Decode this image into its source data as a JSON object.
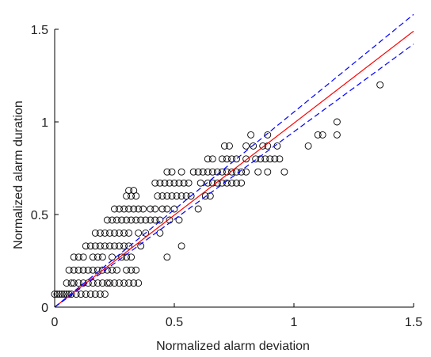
{
  "chart_data": {
    "type": "scatter",
    "title": "",
    "xlabel": "Normalized alarm deviation",
    "ylabel": "Normalized alarm duration",
    "xlim": [
      0,
      1.5
    ],
    "ylim": [
      0,
      1.5
    ],
    "x_ticks": [
      0,
      0.5,
      1,
      1.5
    ],
    "y_ticks": [
      0,
      0.5,
      1,
      1.5
    ],
    "x_tick_labels": [
      "0",
      "0.5",
      "1",
      "1.5"
    ],
    "y_tick_labels": [
      "0",
      "0.5",
      "1",
      "1.5"
    ],
    "grid": false,
    "marker": "open-circle",
    "colors": {
      "points": "#000000",
      "fit": "#ff0000",
      "bounds": "#0000ff",
      "axes": "#000000"
    },
    "lines": [
      {
        "style": "solid",
        "color": "#ff0000",
        "x": [
          0,
          1.5
        ],
        "y": [
          0,
          1.49
        ]
      },
      {
        "style": "dashed",
        "color": "#0000ff",
        "x": [
          0,
          1.5
        ],
        "y": [
          0,
          1.58
        ]
      },
      {
        "style": "dashed",
        "color": "#0000ff",
        "x": [
          0,
          1.5
        ],
        "y": [
          0,
          1.42
        ]
      }
    ],
    "points": [
      [
        0.0,
        0.07
      ],
      [
        0.01,
        0.07
      ],
      [
        0.02,
        0.07
      ],
      [
        0.03,
        0.07
      ],
      [
        0.04,
        0.07
      ],
      [
        0.05,
        0.07
      ],
      [
        0.06,
        0.07
      ],
      [
        0.07,
        0.07
      ],
      [
        0.09,
        0.07
      ],
      [
        0.11,
        0.07
      ],
      [
        0.13,
        0.07
      ],
      [
        0.15,
        0.07
      ],
      [
        0.17,
        0.07
      ],
      [
        0.19,
        0.07
      ],
      [
        0.21,
        0.07
      ],
      [
        0.05,
        0.13
      ],
      [
        0.07,
        0.13
      ],
      [
        0.08,
        0.13
      ],
      [
        0.1,
        0.13
      ],
      [
        0.12,
        0.13
      ],
      [
        0.14,
        0.13
      ],
      [
        0.16,
        0.13
      ],
      [
        0.18,
        0.13
      ],
      [
        0.2,
        0.13
      ],
      [
        0.22,
        0.13
      ],
      [
        0.23,
        0.13
      ],
      [
        0.25,
        0.13
      ],
      [
        0.27,
        0.13
      ],
      [
        0.29,
        0.13
      ],
      [
        0.31,
        0.13
      ],
      [
        0.33,
        0.13
      ],
      [
        0.35,
        0.13
      ],
      [
        0.06,
        0.2
      ],
      [
        0.08,
        0.2
      ],
      [
        0.1,
        0.2
      ],
      [
        0.12,
        0.2
      ],
      [
        0.14,
        0.2
      ],
      [
        0.16,
        0.2
      ],
      [
        0.18,
        0.2
      ],
      [
        0.2,
        0.2
      ],
      [
        0.22,
        0.2
      ],
      [
        0.24,
        0.2
      ],
      [
        0.26,
        0.2
      ],
      [
        0.3,
        0.2
      ],
      [
        0.32,
        0.2
      ],
      [
        0.34,
        0.2
      ],
      [
        0.08,
        0.27
      ],
      [
        0.1,
        0.27
      ],
      [
        0.12,
        0.27
      ],
      [
        0.16,
        0.27
      ],
      [
        0.18,
        0.27
      ],
      [
        0.2,
        0.27
      ],
      [
        0.24,
        0.27
      ],
      [
        0.28,
        0.27
      ],
      [
        0.3,
        0.27
      ],
      [
        0.32,
        0.27
      ],
      [
        0.47,
        0.27
      ],
      [
        0.13,
        0.33
      ],
      [
        0.15,
        0.33
      ],
      [
        0.17,
        0.33
      ],
      [
        0.19,
        0.33
      ],
      [
        0.21,
        0.33
      ],
      [
        0.23,
        0.33
      ],
      [
        0.25,
        0.33
      ],
      [
        0.27,
        0.33
      ],
      [
        0.29,
        0.33
      ],
      [
        0.31,
        0.33
      ],
      [
        0.36,
        0.33
      ],
      [
        0.53,
        0.33
      ],
      [
        0.17,
        0.4
      ],
      [
        0.19,
        0.4
      ],
      [
        0.21,
        0.4
      ],
      [
        0.23,
        0.4
      ],
      [
        0.25,
        0.4
      ],
      [
        0.27,
        0.4
      ],
      [
        0.29,
        0.4
      ],
      [
        0.31,
        0.4
      ],
      [
        0.35,
        0.4
      ],
      [
        0.38,
        0.4
      ],
      [
        0.44,
        0.4
      ],
      [
        0.22,
        0.47
      ],
      [
        0.24,
        0.47
      ],
      [
        0.26,
        0.47
      ],
      [
        0.28,
        0.47
      ],
      [
        0.3,
        0.47
      ],
      [
        0.32,
        0.47
      ],
      [
        0.34,
        0.47
      ],
      [
        0.36,
        0.47
      ],
      [
        0.38,
        0.47
      ],
      [
        0.4,
        0.47
      ],
      [
        0.42,
        0.47
      ],
      [
        0.44,
        0.47
      ],
      [
        0.48,
        0.47
      ],
      [
        0.52,
        0.47
      ],
      [
        0.25,
        0.53
      ],
      [
        0.27,
        0.53
      ],
      [
        0.29,
        0.53
      ],
      [
        0.31,
        0.53
      ],
      [
        0.33,
        0.53
      ],
      [
        0.35,
        0.53
      ],
      [
        0.37,
        0.53
      ],
      [
        0.4,
        0.53
      ],
      [
        0.42,
        0.53
      ],
      [
        0.45,
        0.53
      ],
      [
        0.47,
        0.53
      ],
      [
        0.5,
        0.53
      ],
      [
        0.6,
        0.53
      ],
      [
        0.3,
        0.6
      ],
      [
        0.32,
        0.6
      ],
      [
        0.34,
        0.6
      ],
      [
        0.43,
        0.6
      ],
      [
        0.45,
        0.6
      ],
      [
        0.47,
        0.6
      ],
      [
        0.49,
        0.6
      ],
      [
        0.51,
        0.6
      ],
      [
        0.53,
        0.6
      ],
      [
        0.55,
        0.6
      ],
      [
        0.57,
        0.6
      ],
      [
        0.63,
        0.6
      ],
      [
        0.65,
        0.6
      ],
      [
        0.31,
        0.63
      ],
      [
        0.33,
        0.63
      ],
      [
        0.42,
        0.67
      ],
      [
        0.44,
        0.67
      ],
      [
        0.46,
        0.67
      ],
      [
        0.48,
        0.67
      ],
      [
        0.5,
        0.67
      ],
      [
        0.52,
        0.67
      ],
      [
        0.54,
        0.67
      ],
      [
        0.56,
        0.67
      ],
      [
        0.61,
        0.67
      ],
      [
        0.64,
        0.67
      ],
      [
        0.66,
        0.67
      ],
      [
        0.68,
        0.67
      ],
      [
        0.7,
        0.67
      ],
      [
        0.72,
        0.67
      ],
      [
        0.74,
        0.67
      ],
      [
        0.76,
        0.67
      ],
      [
        0.78,
        0.67
      ],
      [
        0.47,
        0.73
      ],
      [
        0.49,
        0.73
      ],
      [
        0.53,
        0.73
      ],
      [
        0.58,
        0.73
      ],
      [
        0.6,
        0.73
      ],
      [
        0.62,
        0.73
      ],
      [
        0.64,
        0.73
      ],
      [
        0.66,
        0.73
      ],
      [
        0.68,
        0.73
      ],
      [
        0.7,
        0.73
      ],
      [
        0.72,
        0.73
      ],
      [
        0.74,
        0.73
      ],
      [
        0.76,
        0.73
      ],
      [
        0.78,
        0.73
      ],
      [
        0.8,
        0.73
      ],
      [
        0.85,
        0.73
      ],
      [
        0.89,
        0.73
      ],
      [
        0.96,
        0.73
      ],
      [
        0.64,
        0.8
      ],
      [
        0.66,
        0.8
      ],
      [
        0.7,
        0.8
      ],
      [
        0.72,
        0.8
      ],
      [
        0.74,
        0.8
      ],
      [
        0.76,
        0.8
      ],
      [
        0.8,
        0.8
      ],
      [
        0.84,
        0.8
      ],
      [
        0.86,
        0.8
      ],
      [
        0.88,
        0.8
      ],
      [
        0.9,
        0.8
      ],
      [
        0.92,
        0.8
      ],
      [
        0.94,
        0.8
      ],
      [
        0.71,
        0.87
      ],
      [
        0.73,
        0.87
      ],
      [
        0.8,
        0.87
      ],
      [
        0.83,
        0.87
      ],
      [
        0.87,
        0.87
      ],
      [
        0.89,
        0.87
      ],
      [
        0.93,
        0.87
      ],
      [
        1.06,
        0.87
      ],
      [
        0.82,
        0.93
      ],
      [
        0.89,
        0.93
      ],
      [
        1.1,
        0.93
      ],
      [
        1.12,
        0.93
      ],
      [
        1.18,
        0.93
      ],
      [
        1.18,
        1.0
      ],
      [
        1.36,
        1.2
      ]
    ]
  }
}
